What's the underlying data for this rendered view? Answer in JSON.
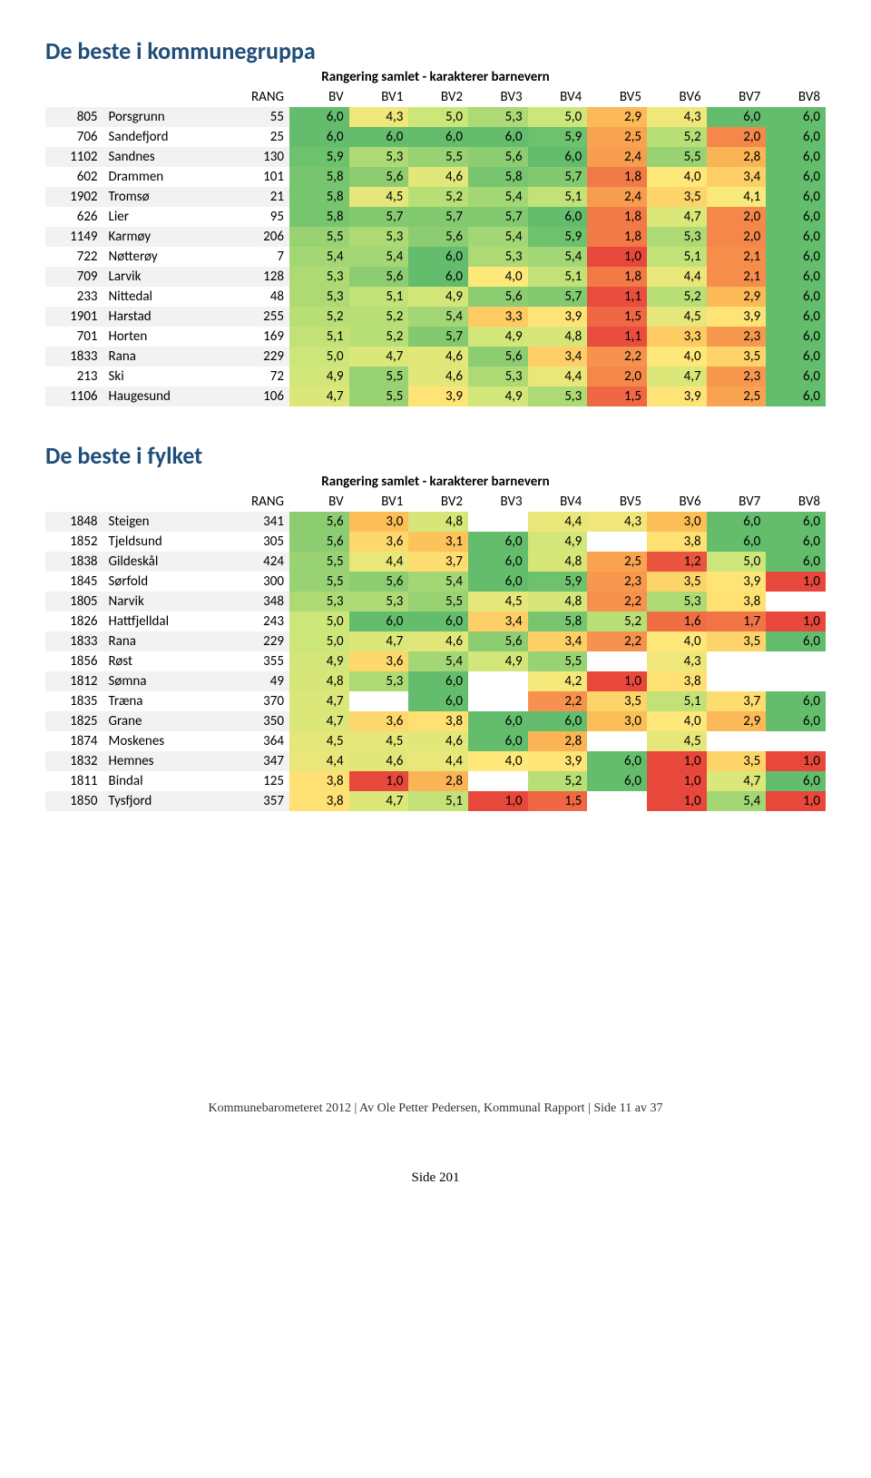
{
  "colors": {
    "title": "#1f4e79",
    "stripe": "#f2f2f2",
    "heat_scale_min": 1.0,
    "heat_scale_max": 6.0,
    "heat_stops": [
      {
        "v": 1.0,
        "c": "#e8473b"
      },
      {
        "v": 2.0,
        "c": "#f5874a"
      },
      {
        "v": 3.0,
        "c": "#fcbf58"
      },
      {
        "v": 4.0,
        "c": "#fee87a"
      },
      {
        "v": 5.0,
        "c": "#cde679"
      },
      {
        "v": 6.0,
        "c": "#63bd6c"
      }
    ]
  },
  "table1": {
    "title": "De beste i kommunegruppa",
    "subtitle": "Rangering samlet - karakterer barnevern",
    "columns": [
      "RANG",
      "BV",
      "BV1",
      "BV2",
      "BV3",
      "BV4",
      "BV5",
      "BV6",
      "BV7",
      "BV8"
    ],
    "rows": [
      {
        "code": "805",
        "name": "Porsgrunn",
        "rang": "55",
        "vals": [
          "6,0",
          "4,3",
          "5,0",
          "5,3",
          "5,0",
          "2,9",
          "4,3",
          "6,0",
          "6,0"
        ]
      },
      {
        "code": "706",
        "name": "Sandefjord",
        "rang": "25",
        "vals": [
          "6,0",
          "6,0",
          "6,0",
          "6,0",
          "5,9",
          "2,5",
          "5,2",
          "2,0",
          "6,0"
        ]
      },
      {
        "code": "1102",
        "name": "Sandnes",
        "rang": "130",
        "vals": [
          "5,9",
          "5,3",
          "5,5",
          "5,6",
          "6,0",
          "2,4",
          "5,5",
          "2,8",
          "6,0"
        ]
      },
      {
        "code": "602",
        "name": "Drammen",
        "rang": "101",
        "vals": [
          "5,8",
          "5,6",
          "4,6",
          "5,8",
          "5,7",
          "1,8",
          "4,0",
          "3,4",
          "6,0"
        ]
      },
      {
        "code": "1902",
        "name": "Tromsø",
        "rang": "21",
        "vals": [
          "5,8",
          "4,5",
          "5,2",
          "5,4",
          "5,1",
          "2,4",
          "3,5",
          "4,1",
          "6,0"
        ]
      },
      {
        "code": "626",
        "name": "Lier",
        "rang": "95",
        "vals": [
          "5,8",
          "5,7",
          "5,7",
          "5,7",
          "6,0",
          "1,8",
          "4,7",
          "2,0",
          "6,0"
        ]
      },
      {
        "code": "1149",
        "name": "Karmøy",
        "rang": "206",
        "vals": [
          "5,5",
          "5,3",
          "5,6",
          "5,4",
          "5,9",
          "1,8",
          "5,3",
          "2,0",
          "6,0"
        ]
      },
      {
        "code": "722",
        "name": "Nøtterøy",
        "rang": "7",
        "vals": [
          "5,4",
          "5,4",
          "6,0",
          "5,3",
          "5,4",
          "1,0",
          "5,1",
          "2,1",
          "6,0"
        ]
      },
      {
        "code": "709",
        "name": "Larvik",
        "rang": "128",
        "vals": [
          "5,3",
          "5,6",
          "6,0",
          "4,0",
          "5,1",
          "1,8",
          "4,4",
          "2,1",
          "6,0"
        ]
      },
      {
        "code": "233",
        "name": "Nittedal",
        "rang": "48",
        "vals": [
          "5,3",
          "5,1",
          "4,9",
          "5,6",
          "5,7",
          "1,1",
          "5,2",
          "2,9",
          "6,0"
        ]
      },
      {
        "code": "1901",
        "name": "Harstad",
        "rang": "255",
        "vals": [
          "5,2",
          "5,2",
          "5,4",
          "3,3",
          "3,9",
          "1,5",
          "4,5",
          "3,9",
          "6,0"
        ]
      },
      {
        "code": "701",
        "name": "Horten",
        "rang": "169",
        "vals": [
          "5,1",
          "5,2",
          "5,7",
          "4,9",
          "4,8",
          "1,1",
          "3,3",
          "2,3",
          "6,0"
        ]
      },
      {
        "code": "1833",
        "name": "Rana",
        "rang": "229",
        "vals": [
          "5,0",
          "4,7",
          "4,6",
          "5,6",
          "3,4",
          "2,2",
          "4,0",
          "3,5",
          "6,0"
        ]
      },
      {
        "code": "213",
        "name": "Ski",
        "rang": "72",
        "vals": [
          "4,9",
          "5,5",
          "4,6",
          "5,3",
          "4,4",
          "2,0",
          "4,7",
          "2,3",
          "6,0"
        ]
      },
      {
        "code": "1106",
        "name": "Haugesund",
        "rang": "106",
        "vals": [
          "4,7",
          "5,5",
          "3,9",
          "4,9",
          "5,3",
          "1,5",
          "3,9",
          "2,5",
          "6,0"
        ]
      }
    ]
  },
  "table2": {
    "title": "De beste i fylket",
    "subtitle": "Rangering samlet - karakterer barnevern",
    "columns": [
      "RANG",
      "BV",
      "BV1",
      "BV2",
      "BV3",
      "BV4",
      "BV5",
      "BV6",
      "BV7",
      "BV8"
    ],
    "rows": [
      {
        "code": "1848",
        "name": "Steigen",
        "rang": "341",
        "vals": [
          "5,6",
          "3,0",
          "4,8",
          "",
          "4,4",
          "4,3",
          "3,0",
          "6,0",
          "6,0"
        ]
      },
      {
        "code": "1852",
        "name": "Tjeldsund",
        "rang": "305",
        "vals": [
          "5,6",
          "3,6",
          "3,1",
          "6,0",
          "4,9",
          "",
          "3,8",
          "6,0",
          "6,0"
        ]
      },
      {
        "code": "1838",
        "name": "Gildeskål",
        "rang": "424",
        "vals": [
          "5,5",
          "4,4",
          "3,7",
          "6,0",
          "4,8",
          "2,5",
          "1,2",
          "5,0",
          "6,0"
        ]
      },
      {
        "code": "1845",
        "name": "Sørfold",
        "rang": "300",
        "vals": [
          "5,5",
          "5,6",
          "5,4",
          "6,0",
          "5,9",
          "2,3",
          "3,5",
          "3,9",
          "1,0"
        ]
      },
      {
        "code": "1805",
        "name": "Narvik",
        "rang": "348",
        "vals": [
          "5,3",
          "5,3",
          "5,5",
          "4,5",
          "4,8",
          "2,2",
          "5,3",
          "3,8",
          ""
        ]
      },
      {
        "code": "1826",
        "name": "Hattfjelldal",
        "rang": "243",
        "vals": [
          "5,0",
          "6,0",
          "6,0",
          "3,4",
          "5,8",
          "5,2",
          "1,6",
          "1,7",
          "1,0"
        ]
      },
      {
        "code": "1833",
        "name": "Rana",
        "rang": "229",
        "vals": [
          "5,0",
          "4,7",
          "4,6",
          "5,6",
          "3,4",
          "2,2",
          "4,0",
          "3,5",
          "6,0"
        ]
      },
      {
        "code": "1856",
        "name": "Røst",
        "rang": "355",
        "vals": [
          "4,9",
          "3,6",
          "5,4",
          "4,9",
          "5,5",
          "",
          "4,3",
          "",
          ""
        ]
      },
      {
        "code": "1812",
        "name": "Sømna",
        "rang": "49",
        "vals": [
          "4,8",
          "5,3",
          "6,0",
          "",
          "4,2",
          "1,0",
          "3,8",
          "",
          ""
        ]
      },
      {
        "code": "1835",
        "name": "Træna",
        "rang": "370",
        "vals": [
          "4,7",
          "",
          "6,0",
          "",
          "2,2",
          "3,5",
          "5,1",
          "3,7",
          "6,0"
        ]
      },
      {
        "code": "1825",
        "name": "Grane",
        "rang": "350",
        "vals": [
          "4,7",
          "3,6",
          "3,8",
          "6,0",
          "6,0",
          "3,0",
          "4,0",
          "2,9",
          "6,0"
        ]
      },
      {
        "code": "1874",
        "name": "Moskenes",
        "rang": "364",
        "vals": [
          "4,5",
          "4,5",
          "4,6",
          "6,0",
          "2,8",
          "",
          "4,5",
          "",
          ""
        ]
      },
      {
        "code": "1832",
        "name": "Hemnes",
        "rang": "347",
        "vals": [
          "4,4",
          "4,6",
          "4,4",
          "4,0",
          "3,9",
          "6,0",
          "1,0",
          "3,5",
          "1,0"
        ]
      },
      {
        "code": "1811",
        "name": "Bindal",
        "rang": "125",
        "vals": [
          "3,8",
          "1,0",
          "2,8",
          "",
          "5,2",
          "6,0",
          "1,0",
          "4,7",
          "6,0"
        ]
      },
      {
        "code": "1850",
        "name": "Tysfjord",
        "rang": "357",
        "vals": [
          "3,8",
          "4,7",
          "5,1",
          "1,0",
          "1,5",
          "",
          "1,0",
          "5,4",
          "1,0"
        ]
      }
    ]
  },
  "footer": "Kommunebarometeret 2012 | Av Ole Petter Pedersen, Kommunal Rapport | Side 11 av 37",
  "page": "Side 201"
}
